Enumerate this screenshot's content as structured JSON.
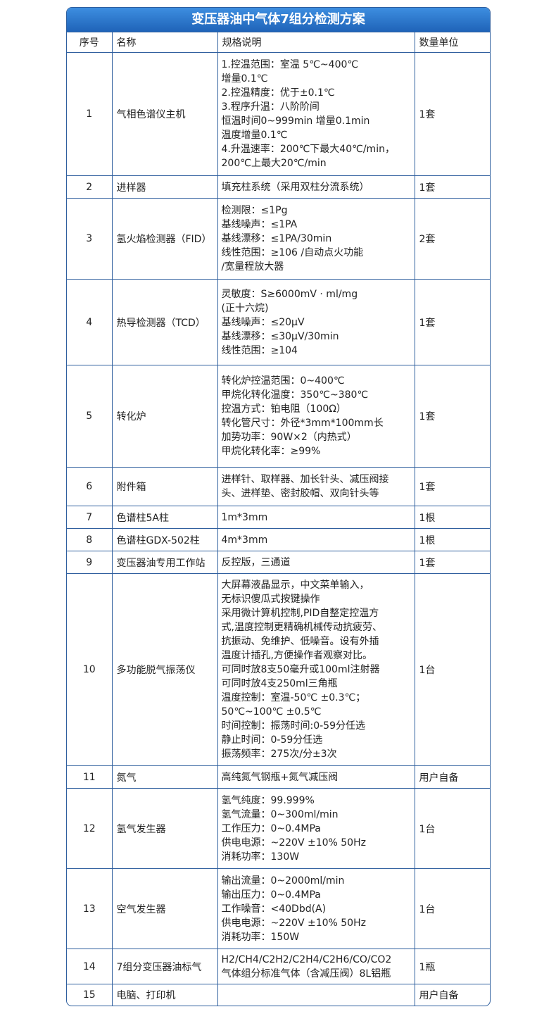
{
  "header": {
    "title": "变压器油中气体7组分检测方案"
  },
  "table": {
    "columns": [
      "序号",
      "名称",
      "规格说明",
      "数量单位"
    ],
    "rows": [
      [
        "1",
        "气相色谱仪主机",
        [
          "1.控温范围：室温 5℃~400℃",
          "增量0.1℃",
          "2.控温精度：优于±0.1℃",
          "3.程序升温：八阶阶间",
          "恒温时间0~999min 增量0.1min",
          "温度增量0.1℃",
          "4.升温速率：200℃下最大40℃/min，",
          "200℃上最大20℃/min"
        ],
        "1套"
      ],
      [
        "2",
        "进样器",
        [
          "填充柱系统（采用双柱分流系统）"
        ],
        "1套"
      ],
      [
        "3",
        "氢火焰检测器（FID）",
        [
          "检测限：≤1Pg",
          "基线噪声：≤1PA",
          "基线漂移：≤1PA/30min",
          "线性范围：≥106 /自动点火功能",
          "/宽量程放大器"
        ],
        "2套"
      ],
      [
        "4",
        "热导检测器（TCD）",
        [
          "灵敏度：S≥6000mV · ml/mg",
          "(正十六烷)",
          "基线噪声：≤20μV",
          "基线漂移：≤30μV/30min",
          "线性范围：≥104"
        ],
        "1套"
      ],
      [
        "5",
        "转化炉",
        [
          "转化炉控温范围：0~400℃",
          "甲烷化转化温度：350℃~380℃",
          "控温方式：铂电阻（100Ω）",
          "转化管尺寸：外径*3mm*100mm长",
          "加势功率：90W×2（内热式）",
          "甲烷化转化率：≥99%"
        ],
        "1套"
      ],
      [
        "6",
        "附件箱",
        [
          "进样针、取样器、加长针头、减压阀接",
          "头、进样垫、密封胶帽、双向针头等"
        ],
        "1套"
      ],
      [
        "7",
        "色谱柱5A柱",
        [
          "1m*3mm"
        ],
        "1根"
      ],
      [
        "8",
        "色谱柱GDX-502柱",
        [
          "4m*3mm"
        ],
        "1根"
      ],
      [
        "9",
        "变压器油专用工作站",
        [
          "反控版，三通道"
        ],
        "1套"
      ],
      [
        "10",
        "多功能脱气振荡仪",
        [
          "大屏幕液晶显示，中文菜单输入，",
          "无标识傻瓜式按键操作",
          "采用微计算机控制,PID自整定控温方",
          "式,温度控制更精确机械传动抗疲劳、",
          "抗振动、免维护、低噪音。设有外插",
          "温度计插孔,方便操作者观察对比。",
          "可同时放8支50毫升或100ml注射器",
          "可同时放4支250ml三角瓶",
          "温度控制：室温-50℃ ±0.3℃；",
          " 50℃~100℃ ±0.5℃",
          "时间控制：振荡时间:0-59分任选",
          "静止时间：0-59分任选",
          "振荡频率：275次/分±3次"
        ],
        "1台"
      ],
      [
        "11",
        "氮气",
        [
          "高纯氮气钢瓶+氮气减压阀"
        ],
        "用户自备"
      ],
      [
        "12",
        "氢气发生器",
        [
          "氢气纯度：99.999%",
          "氢气流量：0~300ml/min",
          "工作压力：0~0.4MPa",
          "供电电源：~220V ±10% 50Hz",
          "消耗功率：130W"
        ],
        "1台"
      ],
      [
        "13",
        "空气发生器",
        [
          "输出流量：0~2000ml/min",
          "输出压力：0~0.4MPa",
          "工作噪音：<40Dbd(A)",
          "供电电源：~220V ±10% 50Hz",
          "消耗功率：150W"
        ],
        "1台"
      ],
      [
        "14",
        "7组分变压器油标气",
        [
          "H2/CH4/C2H2/C2H4/C2H6/CO/CO2",
          "气体组分标准气体（含减压阀）8L铝瓶"
        ],
        "1瓶"
      ],
      [
        "15",
        "电脑、打印机",
        [],
        "用户自备"
      ]
    ]
  }
}
